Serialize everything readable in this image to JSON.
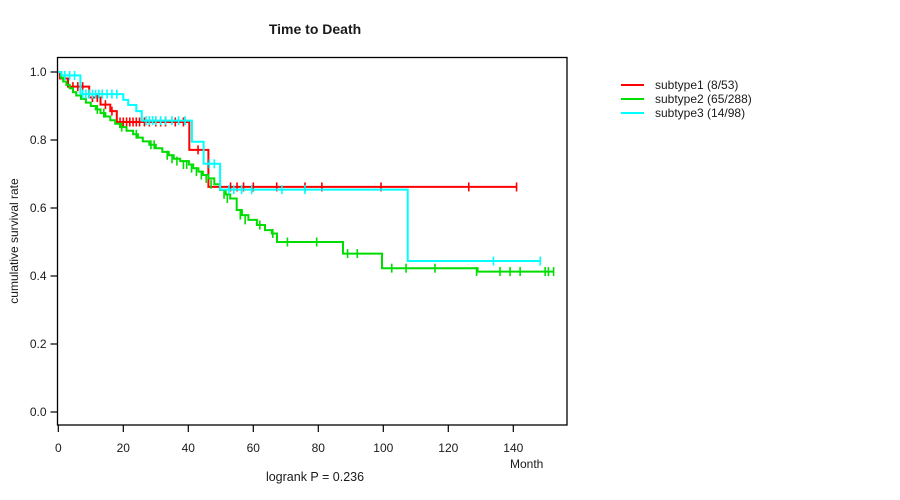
{
  "chart_data": {
    "type": "line",
    "subtype_label": "kaplan-meier-survival-curves",
    "title": "Time to Death",
    "ylabel": "cumulative survival rate",
    "xlabel": "Month",
    "annotation": "logrank P = 0.236",
    "xlim": [
      0,
      156
    ],
    "ylim": [
      0,
      1.0
    ],
    "x_ticks": [
      0,
      20,
      40,
      60,
      80,
      100,
      120,
      140
    ],
    "y_ticks": [
      "0.0",
      "0.2",
      "0.4",
      "0.6",
      "0.8",
      "1.0"
    ],
    "grid": false,
    "legend_position": "right-outside",
    "axis_color": "#000000",
    "series": [
      {
        "name": "subtype1",
        "label": "subtype1 (8/53)",
        "color": "#ff0000",
        "end_month": 141,
        "steps": [
          [
            0,
            1.0
          ],
          [
            0.5,
            0.981
          ],
          [
            3,
            0.957
          ],
          [
            9.5,
            0.925
          ],
          [
            13,
            0.904
          ],
          [
            16,
            0.885
          ],
          [
            18,
            0.853
          ],
          [
            40.3,
            0.771
          ],
          [
            46.2,
            0.662
          ]
        ],
        "censors": [
          [
            4.5,
            0.957
          ],
          [
            6,
            0.957
          ],
          [
            7.5,
            0.957
          ],
          [
            10.5,
            0.925
          ],
          [
            12,
            0.925
          ],
          [
            14.5,
            0.904
          ],
          [
            16.5,
            0.885
          ],
          [
            19,
            0.853
          ],
          [
            20,
            0.853
          ],
          [
            21,
            0.853
          ],
          [
            22,
            0.853
          ],
          [
            23,
            0.853
          ],
          [
            24,
            0.853
          ],
          [
            25,
            0.853
          ],
          [
            26.5,
            0.853
          ],
          [
            28,
            0.853
          ],
          [
            30,
            0.853
          ],
          [
            31.5,
            0.853
          ],
          [
            33,
            0.853
          ],
          [
            36,
            0.853
          ],
          [
            38.5,
            0.853
          ],
          [
            43,
            0.771
          ],
          [
            53,
            0.662
          ],
          [
            55,
            0.662
          ],
          [
            57,
            0.662
          ],
          [
            60,
            0.662
          ],
          [
            67.2,
            0.662
          ],
          [
            75.9,
            0.662
          ],
          [
            81.1,
            0.662
          ],
          [
            99.3,
            0.662
          ],
          [
            126.3,
            0.662
          ],
          [
            141,
            0.662
          ]
        ]
      },
      {
        "name": "subtype2",
        "label": "subtype2 (65/288)",
        "color": "#00dd00",
        "end_month": 152.4,
        "steps": [
          [
            0,
            1.0
          ],
          [
            0.8,
            0.983
          ],
          [
            1.5,
            0.972
          ],
          [
            2.5,
            0.962
          ],
          [
            3.5,
            0.952
          ],
          [
            4.5,
            0.941
          ],
          [
            5.5,
            0.931
          ],
          [
            7,
            0.921
          ],
          [
            8.5,
            0.91
          ],
          [
            10,
            0.9
          ],
          [
            11.5,
            0.89
          ],
          [
            13,
            0.879
          ],
          [
            14.5,
            0.869
          ],
          [
            16,
            0.858
          ],
          [
            17.5,
            0.848
          ],
          [
            19,
            0.838
          ],
          [
            21,
            0.827
          ],
          [
            23,
            0.817
          ],
          [
            24.5,
            0.807
          ],
          [
            26,
            0.796
          ],
          [
            28,
            0.786
          ],
          [
            30,
            0.776
          ],
          [
            32,
            0.765
          ],
          [
            34,
            0.755
          ],
          [
            35.5,
            0.745
          ],
          [
            37.5,
            0.738
          ],
          [
            40.2,
            0.728
          ],
          [
            41.5,
            0.717
          ],
          [
            43.1,
            0.707
          ],
          [
            44.5,
            0.697
          ],
          [
            46.2,
            0.687
          ],
          [
            48,
            0.67
          ],
          [
            49.8,
            0.653
          ],
          [
            51.5,
            0.64
          ],
          [
            52.9,
            0.628
          ],
          [
            54.9,
            0.594
          ],
          [
            56.5,
            0.579
          ],
          [
            58.5,
            0.565
          ],
          [
            61.1,
            0.55
          ],
          [
            63.6,
            0.535
          ],
          [
            65.7,
            0.525
          ],
          [
            67.3,
            0.5
          ],
          [
            87.6,
            0.466
          ],
          [
            99.6,
            0.423
          ],
          [
            129,
            0.413
          ]
        ],
        "censors": [
          [
            12,
            0.89
          ],
          [
            14,
            0.879
          ],
          [
            19.5,
            0.838
          ],
          [
            24,
            0.817
          ],
          [
            28.5,
            0.786
          ],
          [
            29.5,
            0.786
          ],
          [
            33.5,
            0.755
          ],
          [
            35,
            0.745
          ],
          [
            36.5,
            0.738
          ],
          [
            38.5,
            0.728
          ],
          [
            39.5,
            0.728
          ],
          [
            41,
            0.717
          ],
          [
            42.5,
            0.707
          ],
          [
            44,
            0.697
          ],
          [
            45.5,
            0.687
          ],
          [
            47,
            0.67
          ],
          [
            51,
            0.64
          ],
          [
            52,
            0.628
          ],
          [
            56,
            0.579
          ],
          [
            57.5,
            0.565
          ],
          [
            62,
            0.55
          ],
          [
            66,
            0.525
          ],
          [
            70.5,
            0.5
          ],
          [
            79.5,
            0.5
          ],
          [
            89,
            0.466
          ],
          [
            92,
            0.466
          ],
          [
            102.6,
            0.423
          ],
          [
            107,
            0.423
          ],
          [
            115.9,
            0.423
          ],
          [
            128.7,
            0.413
          ],
          [
            135.9,
            0.413
          ],
          [
            139,
            0.413
          ],
          [
            142.1,
            0.413
          ],
          [
            149.8,
            0.413
          ],
          [
            150.8,
            0.413
          ],
          [
            152.4,
            0.413
          ]
        ]
      },
      {
        "name": "subtype3",
        "label": "subtype3 (14/98)",
        "color": "#00ffff",
        "end_month": 148.3,
        "steps": [
          [
            0,
            1.0
          ],
          [
            1,
            0.99
          ],
          [
            6.8,
            0.935
          ],
          [
            20,
            0.918
          ],
          [
            21.5,
            0.903
          ],
          [
            24,
            0.885
          ],
          [
            25.7,
            0.857
          ],
          [
            41.1,
            0.795
          ],
          [
            44.7,
            0.73
          ],
          [
            49.8,
            0.654
          ],
          [
            107.5,
            0.444
          ]
        ],
        "censors": [
          [
            2,
            0.99
          ],
          [
            3.5,
            0.99
          ],
          [
            5,
            0.99
          ],
          [
            7.5,
            0.935
          ],
          [
            8.5,
            0.935
          ],
          [
            9.5,
            0.935
          ],
          [
            10.5,
            0.935
          ],
          [
            11.5,
            0.935
          ],
          [
            12.5,
            0.935
          ],
          [
            13.5,
            0.935
          ],
          [
            15,
            0.935
          ],
          [
            16.5,
            0.935
          ],
          [
            18,
            0.935
          ],
          [
            27,
            0.857
          ],
          [
            28,
            0.857
          ],
          [
            29,
            0.857
          ],
          [
            30,
            0.857
          ],
          [
            31.5,
            0.857
          ],
          [
            33,
            0.857
          ],
          [
            35,
            0.857
          ],
          [
            37,
            0.857
          ],
          [
            39,
            0.857
          ],
          [
            46.5,
            0.73
          ],
          [
            48,
            0.73
          ],
          [
            52.5,
            0.654
          ],
          [
            54,
            0.654
          ],
          [
            56.4,
            0.654
          ],
          [
            59.5,
            0.654
          ],
          [
            68.8,
            0.654
          ],
          [
            75.9,
            0.654
          ],
          [
            133.9,
            0.444
          ],
          [
            148.3,
            0.444
          ]
        ]
      }
    ]
  }
}
